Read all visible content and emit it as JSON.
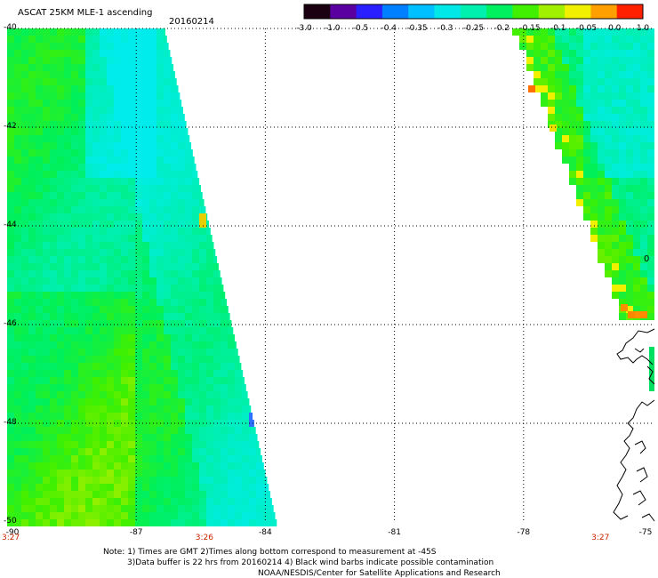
{
  "header": {
    "title": "ASCAT 25KM MLE-1 ascending",
    "date": "20160214"
  },
  "colorbar": {
    "labels": [
      "-3.0",
      "-1.0",
      "-0.5",
      "-0.4",
      "-0.35",
      "-0.3",
      "-0.25",
      "-0.2",
      "-0.15",
      "-0.1",
      "-0.05",
      "0.0",
      "1.0"
    ],
    "colors": [
      "#1a0010",
      "#5a00a0",
      "#2a20ff",
      "#0080ff",
      "#00c0ff",
      "#00e8e8",
      "#00f0b0",
      "#00f060",
      "#40f000",
      "#a0f000",
      "#f0f000",
      "#ffa000",
      "#ff2000"
    ]
  },
  "map": {
    "lat_labels": [
      "-40",
      "-42",
      "-44",
      "-46",
      "-48",
      "-50"
    ],
    "lon_labels": [
      "-90",
      "-87",
      "-84",
      "-81",
      "-78",
      "-75"
    ],
    "time_labels": [
      {
        "label": "3:27",
        "lon": -90
      },
      {
        "label": "3:26",
        "lon": -85.5
      },
      {
        "label": "3:27",
        "lon": -76.3
      }
    ],
    "edge_label": "0"
  },
  "notes": {
    "line1": "Note: 1) Times are GMT 2)Times along bottom correspond to measurement at -45S",
    "line2": "3)Data buffer is 22 hrs from 20160214 4) Black wind barbs indicate possible contamination",
    "line3": "NOAA/NESDIS/Center for Satellite Applications and Research"
  }
}
